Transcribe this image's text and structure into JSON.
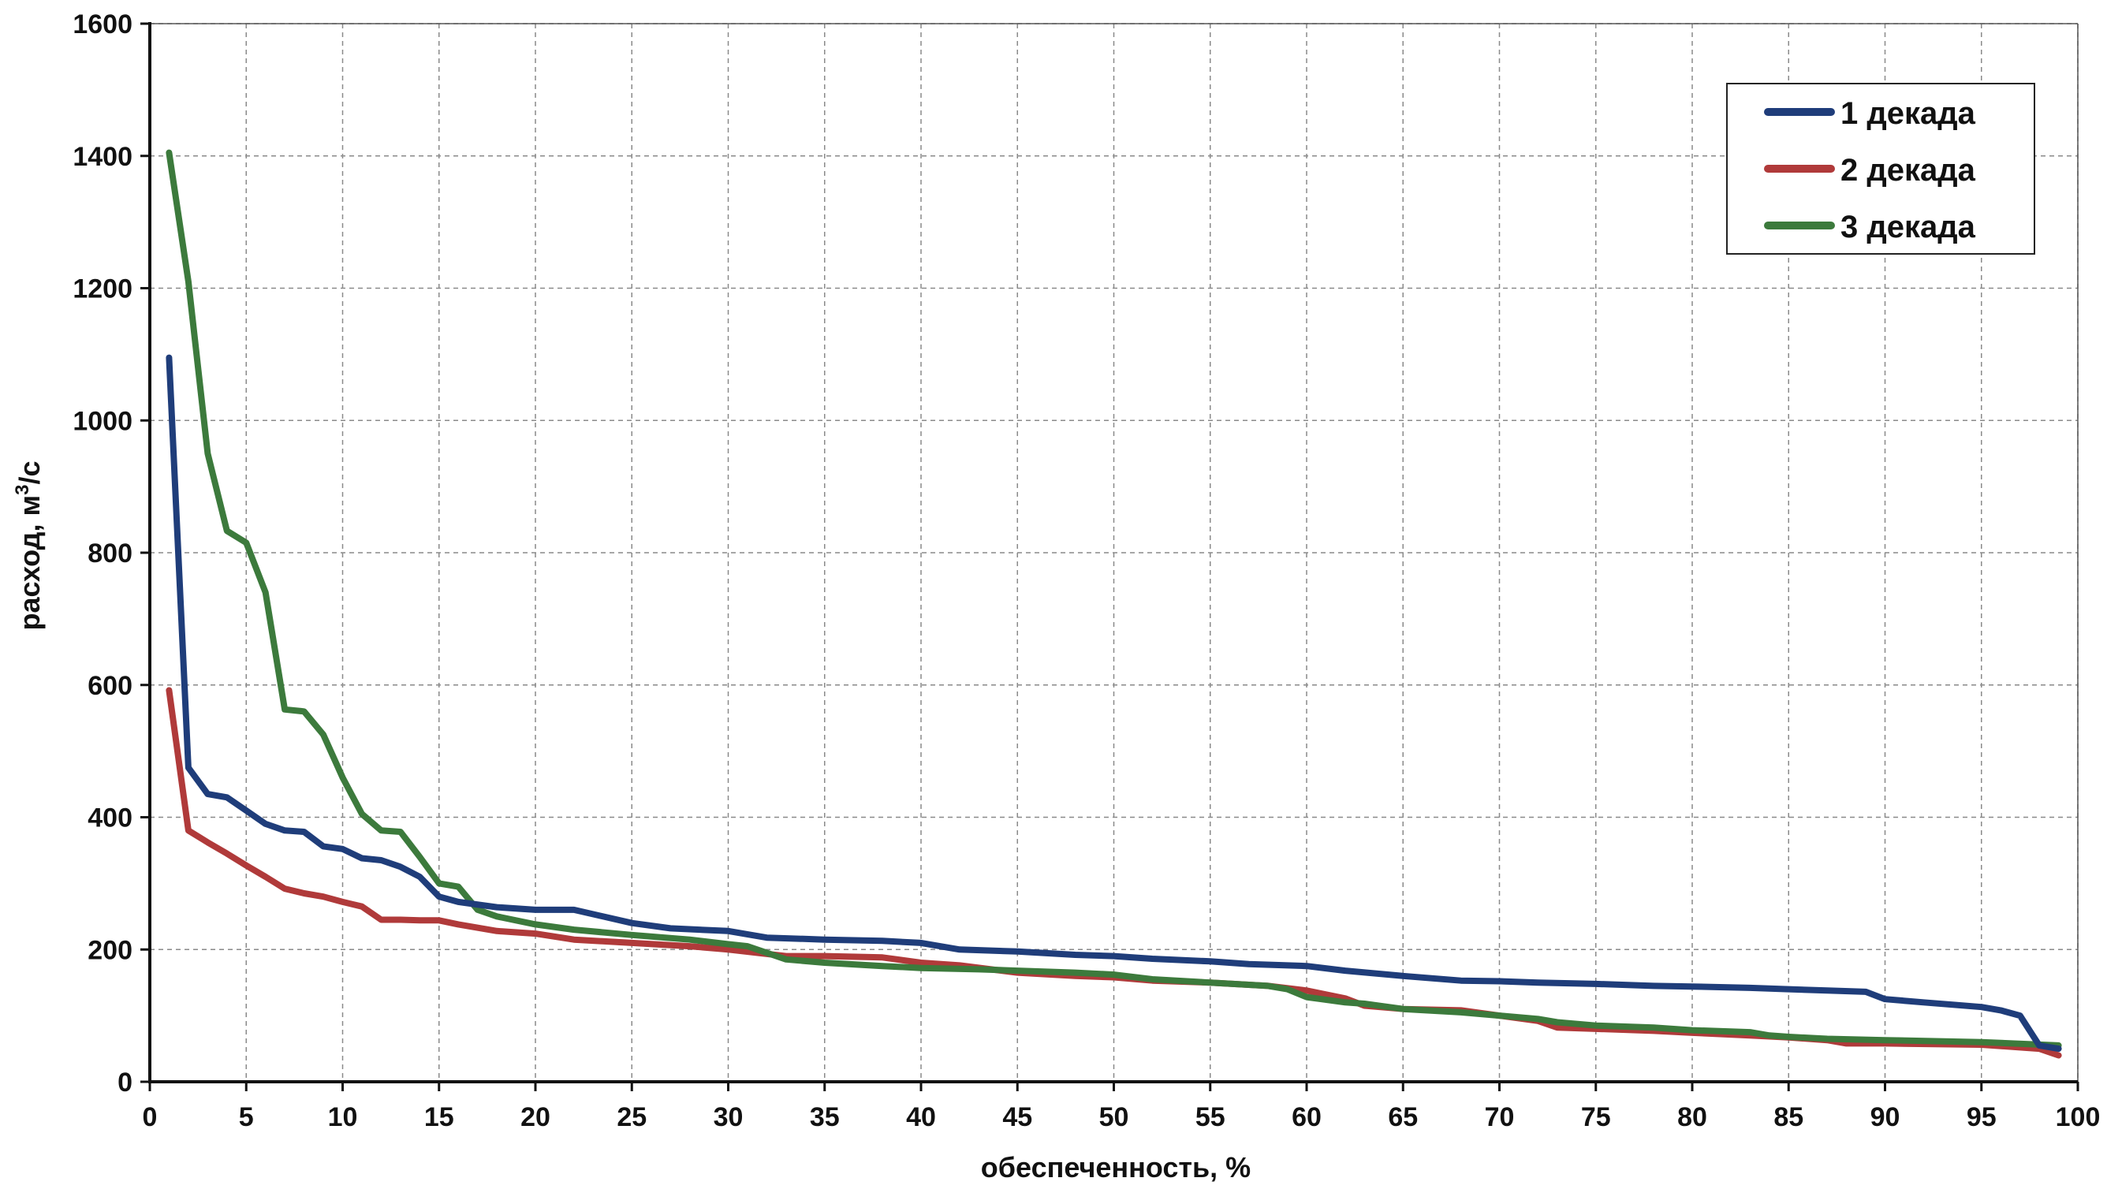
{
  "chart_data": {
    "type": "line",
    "title": "",
    "xlabel": "обеспеченность, %",
    "ylabel_main": "расход, м",
    "ylabel_sup": "3",
    "ylabel_tail": "/с",
    "xlim": [
      0,
      100
    ],
    "ylim": [
      0,
      1600
    ],
    "xticks": [
      0,
      5,
      10,
      15,
      20,
      25,
      30,
      35,
      40,
      45,
      50,
      55,
      60,
      65,
      70,
      75,
      80,
      85,
      90,
      95,
      100
    ],
    "yticks": [
      0,
      200,
      400,
      600,
      800,
      1000,
      1200,
      1400,
      1600
    ],
    "grid": true,
    "legend_position": "top-right",
    "series": [
      {
        "name": "1 декада",
        "color": "#1f3d7a",
        "x": [
          1,
          2,
          3,
          4,
          5,
          6,
          7,
          8,
          9,
          10,
          11,
          12,
          13,
          14,
          15,
          16,
          18,
          20,
          22,
          25,
          27,
          30,
          32,
          35,
          38,
          40,
          42,
          45,
          48,
          50,
          52,
          55,
          57,
          60,
          62,
          65,
          68,
          70,
          72,
          75,
          78,
          80,
          83,
          85,
          87,
          89,
          90,
          92,
          95,
          96,
          97,
          98,
          99
        ],
        "y": [
          1095,
          475,
          435,
          430,
          410,
          390,
          380,
          378,
          356,
          352,
          338,
          335,
          325,
          310,
          280,
          272,
          264,
          260,
          260,
          240,
          232,
          228,
          218,
          215,
          213,
          210,
          200,
          197,
          192,
          190,
          186,
          182,
          178,
          175,
          168,
          160,
          153,
          152,
          150,
          148,
          145,
          144,
          142,
          140,
          138,
          136,
          125,
          120,
          113,
          108,
          100,
          55,
          50
        ]
      },
      {
        "name": "2 декада",
        "color": "#b03a3a",
        "x": [
          1,
          2,
          3,
          4,
          5,
          6,
          7,
          8,
          9,
          10,
          11,
          12,
          13,
          14,
          15,
          16,
          18,
          20,
          22,
          25,
          28,
          30,
          33,
          35,
          38,
          40,
          42,
          45,
          48,
          50,
          52,
          55,
          58,
          60,
          62,
          63,
          65,
          68,
          70,
          72,
          73,
          75,
          78,
          80,
          83,
          85,
          87,
          88,
          90,
          95,
          98,
          99
        ],
        "y": [
          592,
          380,
          362,
          345,
          327,
          310,
          292,
          285,
          280,
          272,
          265,
          245,
          245,
          244,
          244,
          238,
          228,
          224,
          215,
          210,
          205,
          200,
          190,
          190,
          188,
          180,
          176,
          165,
          160,
          158,
          153,
          150,
          145,
          138,
          126,
          115,
          110,
          108,
          100,
          92,
          82,
          80,
          77,
          74,
          70,
          67,
          63,
          58,
          58,
          56,
          50,
          40
        ]
      },
      {
        "name": "3 декада",
        "color": "#3c7a3c",
        "x": [
          1,
          2,
          3,
          4,
          5,
          6,
          7,
          8,
          9,
          10,
          11,
          12,
          13,
          14,
          15,
          16,
          17,
          18,
          20,
          22,
          25,
          28,
          30,
          31,
          33,
          35,
          38,
          40,
          43,
          45,
          48,
          50,
          52,
          55,
          58,
          59,
          60,
          62,
          63,
          65,
          68,
          70,
          72,
          73,
          75,
          78,
          80,
          83,
          84,
          85,
          87,
          90,
          95,
          99
        ],
        "y": [
          1405,
          1210,
          950,
          833,
          815,
          740,
          563,
          560,
          525,
          460,
          405,
          380,
          378,
          340,
          300,
          295,
          260,
          250,
          238,
          230,
          222,
          215,
          208,
          205,
          185,
          180,
          175,
          172,
          170,
          168,
          165,
          162,
          155,
          150,
          145,
          140,
          128,
          120,
          118,
          110,
          105,
          100,
          95,
          90,
          85,
          82,
          78,
          75,
          70,
          68,
          65,
          63,
          60,
          55
        ]
      }
    ]
  }
}
